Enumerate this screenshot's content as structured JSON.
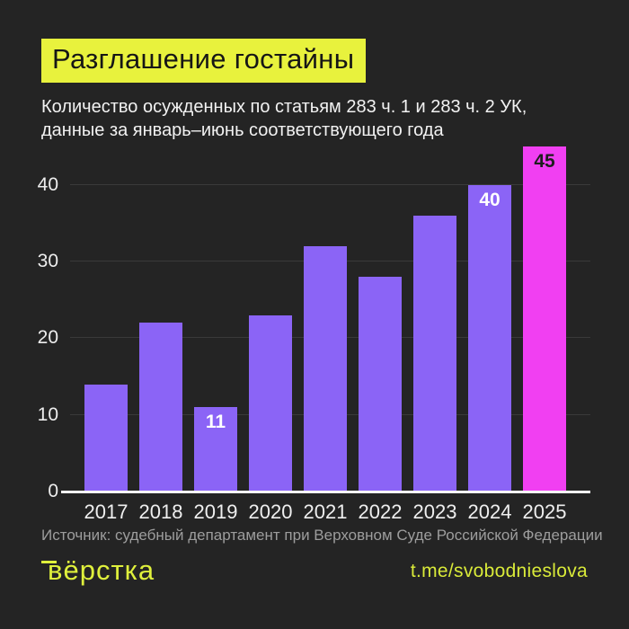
{
  "header": {
    "title": "Разглашение гостайны",
    "subtitle_line1": "Количество осужденных по статьям 283 ч. 1 и 283 ч. 2 УК,",
    "subtitle_line2": "данные за январь–июнь соответствующего года"
  },
  "chart_data": {
    "type": "bar",
    "title": "Разглашение гостайны",
    "categories": [
      "2017",
      "2018",
      "2019",
      "2020",
      "2021",
      "2022",
      "2023",
      "2024",
      "2025"
    ],
    "values": [
      14,
      22,
      11,
      23,
      32,
      28,
      36,
      40,
      45
    ],
    "labeled_categories": [
      "2019",
      "2024",
      "2025"
    ],
    "bar_value_labels": {
      "2019": "11",
      "2024": "40",
      "2025": "45"
    },
    "highlight_category": "2025",
    "yticks": [
      0,
      10,
      20,
      30,
      40
    ],
    "ylim": [
      0,
      45
    ],
    "grid": "horizontal",
    "legend": "none",
    "bar_color": "#8b64f6",
    "highlight_color": "#f13ff2",
    "label_color_on_purple": "#ffffff",
    "label_color_on_magenta": "#1e1e1e"
  },
  "footer": {
    "source": "Источник: судебный департамент при Верховном Суде Российской Федерации",
    "logo_text": "вёрстка",
    "telegram_link": "t.me/svobodnieslova"
  },
  "colors": {
    "background": "#242424",
    "accent_yellow": "#e8f23d",
    "footer_yellow": "#dff03c",
    "bar_purple": "#8b64f6",
    "bar_magenta": "#f13ff2",
    "axis_text": "#ededed",
    "gridline": "#3a3a3a",
    "baseline": "#f7f7f7",
    "source_text": "#9d9d9d"
  }
}
